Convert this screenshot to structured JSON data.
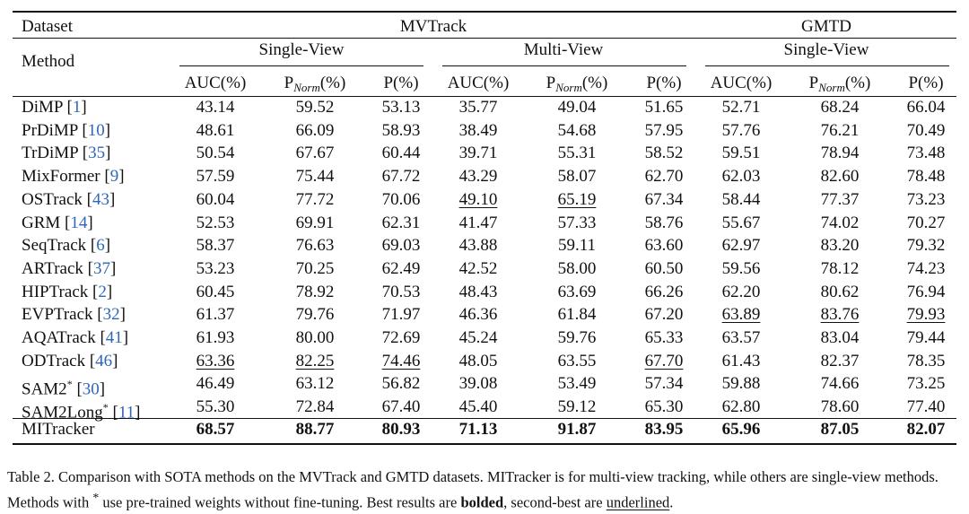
{
  "header": {
    "dataset_label": "Dataset",
    "method_label": "Method",
    "group1": "MVTrack",
    "group2": "GMTD",
    "subgroups": [
      "Single-View",
      "Multi-View",
      "Single-View"
    ],
    "col_auc": "AUC(%)",
    "col_pnorm_main": "P",
    "col_pnorm_sub": "Norm",
    "col_pnorm_tail": "(%)",
    "col_p": "P(%)"
  },
  "rows": [
    {
      "name": "DiMP",
      "cite": "1",
      "sup": "",
      "v": [
        "43.14",
        "59.52",
        "53.13",
        "35.77",
        "49.04",
        "51.65",
        "52.71",
        "68.24",
        "66.04"
      ],
      "u": [],
      "b": []
    },
    {
      "name": "PrDiMP",
      "cite": "10",
      "sup": "",
      "v": [
        "48.61",
        "66.09",
        "58.93",
        "38.49",
        "54.68",
        "57.95",
        "57.76",
        "76.21",
        "70.49"
      ],
      "u": [],
      "b": []
    },
    {
      "name": "TrDiMP",
      "cite": "35",
      "sup": "",
      "v": [
        "50.54",
        "67.67",
        "60.44",
        "39.71",
        "55.31",
        "58.52",
        "59.51",
        "78.94",
        "73.48"
      ],
      "u": [],
      "b": []
    },
    {
      "name": "MixFormer",
      "cite": "9",
      "sup": "",
      "v": [
        "57.59",
        "75.44",
        "67.72",
        "43.29",
        "58.07",
        "62.70",
        "62.03",
        "82.60",
        "78.48"
      ],
      "u": [],
      "b": []
    },
    {
      "name": "OSTrack",
      "cite": "43",
      "sup": "",
      "v": [
        "60.04",
        "77.72",
        "70.06",
        "49.10",
        "65.19",
        "67.34",
        "58.44",
        "77.37",
        "73.23"
      ],
      "u": [
        3,
        4
      ],
      "b": []
    },
    {
      "name": "GRM",
      "cite": "14",
      "sup": "",
      "v": [
        "52.53",
        "69.91",
        "62.31",
        "41.47",
        "57.33",
        "58.76",
        "55.67",
        "74.02",
        "70.27"
      ],
      "u": [],
      "b": []
    },
    {
      "name": "SeqTrack",
      "cite": "6",
      "sup": "",
      "v": [
        "58.37",
        "76.63",
        "69.03",
        "43.88",
        "59.11",
        "63.60",
        "62.97",
        "83.20",
        "79.32"
      ],
      "u": [],
      "b": []
    },
    {
      "name": "ARTrack",
      "cite": "37",
      "sup": "",
      "v": [
        "53.23",
        "70.25",
        "62.49",
        "42.52",
        "58.00",
        "60.50",
        "59.56",
        "78.12",
        "74.23"
      ],
      "u": [],
      "b": []
    },
    {
      "name": "HIPTrack",
      "cite": "2",
      "sup": "",
      "v": [
        "60.45",
        "78.92",
        "70.53",
        "48.43",
        "63.69",
        "66.26",
        "62.20",
        "80.62",
        "76.94"
      ],
      "u": [],
      "b": []
    },
    {
      "name": "EVPTrack",
      "cite": "32",
      "sup": "",
      "v": [
        "61.37",
        "79.76",
        "71.97",
        "46.36",
        "61.84",
        "67.20",
        "63.89",
        "83.76",
        "79.93"
      ],
      "u": [
        6,
        7,
        8
      ],
      "b": []
    },
    {
      "name": "AQATrack",
      "cite": "41",
      "sup": "",
      "v": [
        "61.93",
        "80.00",
        "72.69",
        "45.24",
        "59.76",
        "65.33",
        "63.57",
        "83.04",
        "79.44"
      ],
      "u": [],
      "b": []
    },
    {
      "name": "ODTrack",
      "cite": "46",
      "sup": "",
      "v": [
        "63.36",
        "82.25",
        "74.46",
        "48.05",
        "63.55",
        "67.70",
        "61.43",
        "82.37",
        "78.35"
      ],
      "u": [
        0,
        1,
        2,
        5
      ],
      "b": []
    },
    {
      "name": "SAM2",
      "cite": "30",
      "sup": "*",
      "v": [
        "46.49",
        "63.12",
        "56.82",
        "39.08",
        "53.49",
        "57.34",
        "59.88",
        "74.66",
        "73.25"
      ],
      "u": [],
      "b": []
    },
    {
      "name": "SAM2Long",
      "cite": "11",
      "sup": "*",
      "v": [
        "55.30",
        "72.84",
        "67.40",
        "45.40",
        "59.12",
        "65.30",
        "62.80",
        "78.60",
        "77.40"
      ],
      "u": [],
      "b": []
    },
    {
      "name": "MITracker",
      "cite": "",
      "sup": "",
      "v": [
        "68.57",
        "88.77",
        "80.93",
        "71.13",
        "91.87",
        "83.95",
        "65.96",
        "87.05",
        "82.07"
      ],
      "u": [],
      "b": [
        0,
        1,
        2,
        3,
        4,
        5,
        6,
        7,
        8
      ]
    }
  ],
  "caption": {
    "prefix": "Table 2. Comparison with SOTA methods on the MVTrack and GMTD datasets. MITracker is for multi-view tracking, while others are single-view methods. Methods with ",
    "star": "*",
    "middle": " use pre-trained weights without fine-tuning. Best results are ",
    "bolded": "bolded",
    "comma": ", second-best are ",
    "underlined": "underlined",
    "end": "."
  }
}
